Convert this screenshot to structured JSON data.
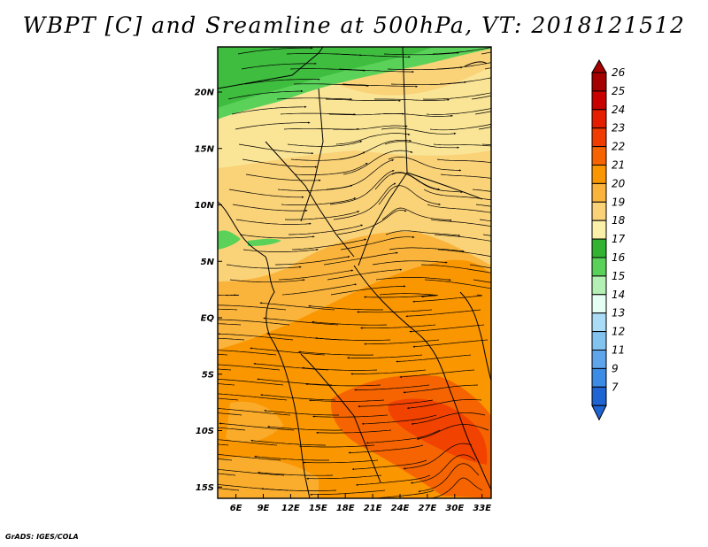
{
  "title": "WBPT [C] and Sreamline at 500hPa, VT: 2018121512",
  "credit": "GrADS: IGES/COLA",
  "map": {
    "lon_range": [
      4,
      34
    ],
    "lat_range": [
      -16,
      24
    ],
    "lat_ticks": [
      {
        "value": 20,
        "label": "20N"
      },
      {
        "value": 15,
        "label": "15N"
      },
      {
        "value": 10,
        "label": "10N"
      },
      {
        "value": 5,
        "label": "5N"
      },
      {
        "value": 0,
        "label": "EQ"
      },
      {
        "value": -5,
        "label": "5S"
      },
      {
        "value": -10,
        "label": "10S"
      },
      {
        "value": -15,
        "label": "15S"
      }
    ],
    "lon_ticks": [
      {
        "value": 6,
        "label": "6E"
      },
      {
        "value": 9,
        "label": "9E"
      },
      {
        "value": 12,
        "label": "12E"
      },
      {
        "value": 15,
        "label": "15E"
      },
      {
        "value": 18,
        "label": "18E"
      },
      {
        "value": 21,
        "label": "21E"
      },
      {
        "value": 24,
        "label": "24E"
      },
      {
        "value": 27,
        "label": "27E"
      },
      {
        "value": 30,
        "label": "30E"
      },
      {
        "value": 33,
        "label": "33E"
      }
    ]
  },
  "colorbar": {
    "levels": [
      {
        "label": "26",
        "color": "#a50000"
      },
      {
        "label": "25",
        "color": "#c80000"
      },
      {
        "label": "24",
        "color": "#e61e00"
      },
      {
        "label": "23",
        "color": "#f03c00"
      },
      {
        "label": "22",
        "color": "#f56400"
      },
      {
        "label": "21",
        "color": "#fa9600"
      },
      {
        "label": "20",
        "color": "#fab43c"
      },
      {
        "label": "19",
        "color": "#fad278"
      },
      {
        "label": "18",
        "color": "#faf0aa"
      },
      {
        "label": "17",
        "color": "#32b432"
      },
      {
        "label": "16",
        "color": "#5ad25a"
      },
      {
        "label": "15",
        "color": "#b4f0b4"
      },
      {
        "label": "14",
        "color": "#e6fff5"
      },
      {
        "label": "13",
        "color": "#aadcf5"
      },
      {
        "label": "12",
        "color": "#82c3f0"
      },
      {
        "label": "11",
        "color": "#5fa5eb"
      },
      {
        "label": "9",
        "color": "#3c8ce6"
      },
      {
        "label": "7",
        "color": "#1e64d2"
      }
    ],
    "bottom_color": "#1e64d2"
  }
}
